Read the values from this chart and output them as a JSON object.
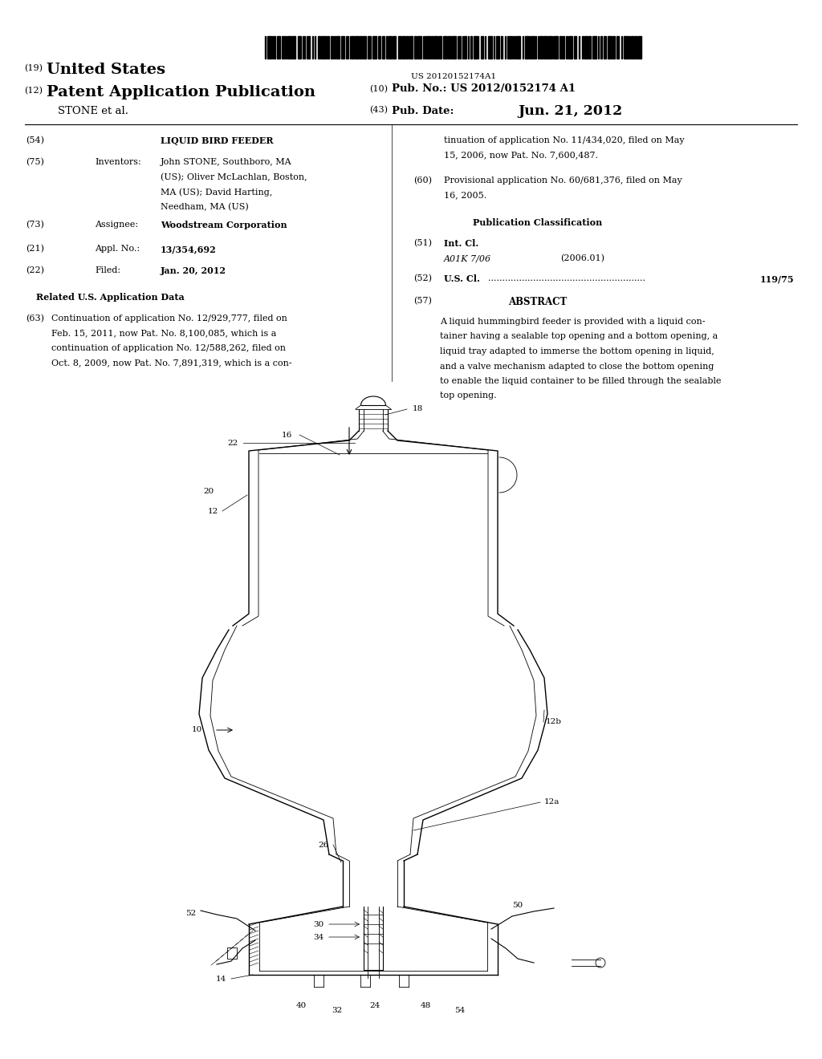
{
  "background_color": "#ffffff",
  "page_width": 10.24,
  "page_height": 13.2,
  "barcode_text": "US 20120152174A1",
  "header": {
    "country_num": "(19)",
    "country": "United States",
    "type_num": "(12)",
    "type": "Patent Application Publication",
    "pub_num_label_num": "(10)",
    "pub_num_label": "Pub. No.:",
    "pub_num": "US 2012/0152174 A1",
    "assignee_name": "STONE et al.",
    "pub_date_num": "(43)",
    "pub_date_label": "Pub. Date:",
    "pub_date": "Jun. 21, 2012"
  },
  "left_col": {
    "title_num": "(54)",
    "title": "LIQUID BIRD FEEDER",
    "inventors_num": "(75)",
    "inventors_label": "Inventors:",
    "inventors_text_lines": [
      "John STONE, Southboro, MA",
      "(US); Oliver McLachlan, Boston,",
      "MA (US); David Harting,",
      "Needham, MA (US)"
    ],
    "assignee_num": "(73)",
    "assignee_label": "Assignee:",
    "assignee_text": "Woodstream Corporation",
    "appl_num": "(21)",
    "appl_label": "Appl. No.:",
    "appl_text": "13/354,692",
    "filed_num": "(22)",
    "filed_label": "Filed:",
    "filed_text": "Jan. 20, 2012",
    "related_header": "Related U.S. Application Data",
    "cont_num": "(63)",
    "cont_text_lines": [
      "Continuation of application No. 12/929,777, filed on",
      "Feb. 15, 2011, now Pat. No. 8,100,085, which is a",
      "continuation of application No. 12/588,262, filed on",
      "Oct. 8, 2009, now Pat. No. 7,891,319, which is a con-"
    ]
  },
  "right_col": {
    "cont_text2_lines": [
      "tinuation of application No. 11/434,020, filed on May",
      "15, 2006, now Pat. No. 7,600,487."
    ],
    "prov_num": "(60)",
    "prov_text_lines": [
      "Provisional application No. 60/681,376, filed on May",
      "16, 2005."
    ],
    "pub_class_header": "Publication Classification",
    "int_cl_num": "(51)",
    "int_cl_label": "Int. Cl.",
    "int_cl_code": "A01K 7/06",
    "int_cl_year": "(2006.01)",
    "us_cl_num": "(52)",
    "us_cl_label": "U.S. Cl.",
    "us_cl_dots": "........................................................",
    "us_cl_value": "119/75",
    "abstract_num": "(57)",
    "abstract_header": "ABSTRACT",
    "abstract_text_lines": [
      "A liquid hummingbird feeder is provided with a liquid con-",
      "tainer having a sealable top opening and a bottom opening, a",
      "liquid tray adapted to immerse the bottom opening in liquid,",
      "and a valve mechanism adapted to close the bottom opening",
      "to enable the liquid container to be filled through the sealable",
      "top opening."
    ]
  }
}
